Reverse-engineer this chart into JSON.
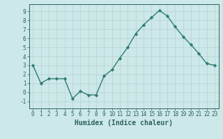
{
  "x": [
    0,
    1,
    2,
    3,
    4,
    5,
    6,
    7,
    8,
    9,
    10,
    11,
    12,
    13,
    14,
    15,
    16,
    17,
    18,
    19,
    20,
    21,
    22,
    23
  ],
  "y": [
    3.0,
    1.0,
    1.5,
    1.5,
    1.5,
    -0.7,
    0.1,
    -0.3,
    -0.3,
    1.8,
    2.5,
    3.8,
    5.0,
    6.5,
    7.5,
    8.3,
    9.1,
    8.5,
    7.3,
    6.2,
    5.3,
    4.3,
    3.2,
    3.0
  ],
  "line_color": "#2e7d6e",
  "marker": "D",
  "marker_size": 2.2,
  "line_width": 1.0,
  "bg_color": "#cce8e8",
  "grid_color": "#b8d0d0",
  "xlabel": "Humidex (Indice chaleur)",
  "xlabel_fontsize": 7,
  "xlim": [
    -0.5,
    23.5
  ],
  "ylim": [
    -1.8,
    9.8
  ],
  "yticks": [
    -1,
    0,
    1,
    2,
    3,
    4,
    5,
    6,
    7,
    8,
    9
  ],
  "xticks": [
    0,
    1,
    2,
    3,
    4,
    5,
    6,
    7,
    8,
    9,
    10,
    11,
    12,
    13,
    14,
    15,
    16,
    17,
    18,
    19,
    20,
    21,
    22,
    23
  ],
  "tick_fontsize": 5.5,
  "tick_color": "#2e6060",
  "label_color": "#2e6060",
  "spine_color": "#2e6060"
}
